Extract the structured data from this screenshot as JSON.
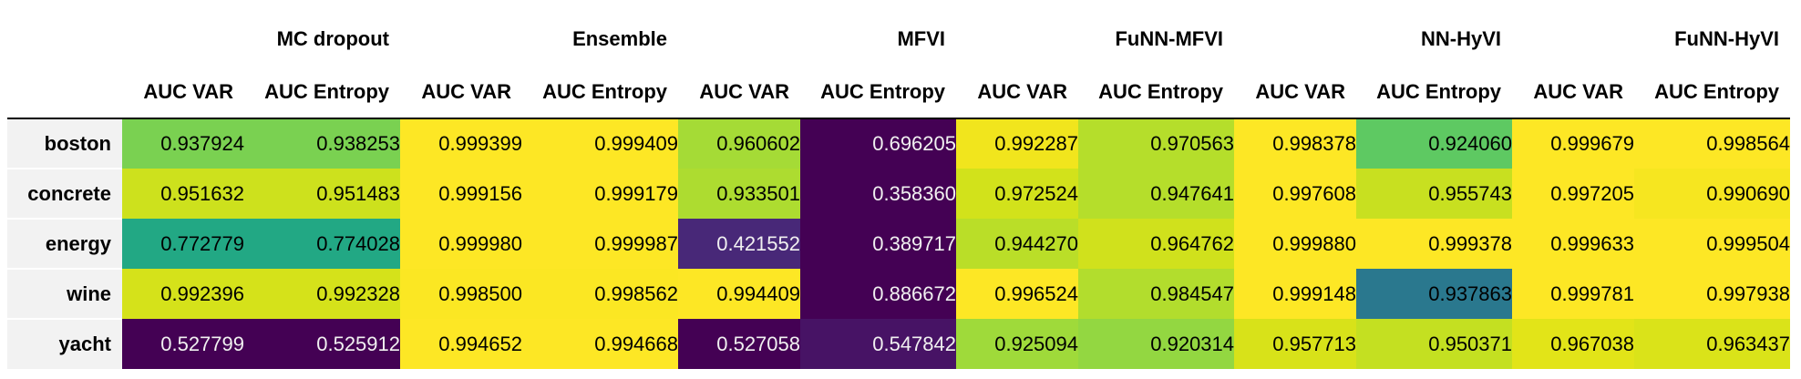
{
  "table": {
    "groups": [
      "MC dropout",
      "Ensemble",
      "MFVI",
      "FuNN-MFVI",
      "NN-HyVI",
      "FuNN-HyVI"
    ],
    "subcolumns": [
      "AUC VAR",
      "AUC Entropy"
    ],
    "rows": [
      {
        "name": "boston",
        "cells": [
          {
            "text": "0.937924",
            "bg": "#7ad151",
            "fg": "#000000"
          },
          {
            "text": "0.938253",
            "bg": "#7ad151",
            "fg": "#000000"
          },
          {
            "text": "0.999399",
            "bg": "#fde725",
            "fg": "#000000"
          },
          {
            "text": "0.999409",
            "bg": "#fde725",
            "fg": "#000000"
          },
          {
            "text": "0.960602",
            "bg": "#a5db36",
            "fg": "#000000"
          },
          {
            "text": "0.696205",
            "bg": "#440154",
            "fg": "#f1f1f1"
          },
          {
            "text": "0.992287",
            "bg": "#f1e51d",
            "fg": "#000000"
          },
          {
            "text": "0.970563",
            "bg": "#b5de2b",
            "fg": "#000000"
          },
          {
            "text": "0.998378",
            "bg": "#fde725",
            "fg": "#000000"
          },
          {
            "text": "0.924060",
            "bg": "#5ec962",
            "fg": "#000000"
          },
          {
            "text": "0.999679",
            "bg": "#fde725",
            "fg": "#000000"
          },
          {
            "text": "0.998564",
            "bg": "#fde725",
            "fg": "#000000"
          }
        ]
      },
      {
        "name": "concrete",
        "cells": [
          {
            "text": "0.951632",
            "bg": "#cde11d",
            "fg": "#000000"
          },
          {
            "text": "0.951483",
            "bg": "#cde11d",
            "fg": "#000000"
          },
          {
            "text": "0.999156",
            "bg": "#fde725",
            "fg": "#000000"
          },
          {
            "text": "0.999179",
            "bg": "#fde725",
            "fg": "#000000"
          },
          {
            "text": "0.933501",
            "bg": "#addc30",
            "fg": "#000000"
          },
          {
            "text": "0.358360",
            "bg": "#440154",
            "fg": "#f1f1f1"
          },
          {
            "text": "0.972524",
            "bg": "#d2e21b",
            "fg": "#000000"
          },
          {
            "text": "0.947641",
            "bg": "#b5de2b",
            "fg": "#000000"
          },
          {
            "text": "0.997608",
            "bg": "#fde725",
            "fg": "#000000"
          },
          {
            "text": "0.955743",
            "bg": "#c8e020",
            "fg": "#000000"
          },
          {
            "text": "0.997205",
            "bg": "#fde725",
            "fg": "#000000"
          },
          {
            "text": "0.990690",
            "bg": "#f6e620",
            "fg": "#000000"
          }
        ]
      },
      {
        "name": "energy",
        "cells": [
          {
            "text": "0.772779",
            "bg": "#22a884",
            "fg": "#000000"
          },
          {
            "text": "0.774028",
            "bg": "#22a884",
            "fg": "#000000"
          },
          {
            "text": "0.999980",
            "bg": "#fde725",
            "fg": "#000000"
          },
          {
            "text": "0.999987",
            "bg": "#fde725",
            "fg": "#000000"
          },
          {
            "text": "0.421552",
            "bg": "#482878",
            "fg": "#f1f1f1"
          },
          {
            "text": "0.389717",
            "bg": "#440154",
            "fg": "#f1f1f1"
          },
          {
            "text": "0.944270",
            "bg": "#bade28",
            "fg": "#000000"
          },
          {
            "text": "0.964762",
            "bg": "#d0e11c",
            "fg": "#000000"
          },
          {
            "text": "0.999880",
            "bg": "#fde725",
            "fg": "#000000"
          },
          {
            "text": "0.999378",
            "bg": "#fde725",
            "fg": "#000000"
          },
          {
            "text": "0.999633",
            "bg": "#fde725",
            "fg": "#000000"
          },
          {
            "text": "0.999504",
            "bg": "#fde725",
            "fg": "#000000"
          }
        ]
      },
      {
        "name": "wine",
        "cells": [
          {
            "text": "0.992396",
            "bg": "#d5e21a",
            "fg": "#000000"
          },
          {
            "text": "0.992328",
            "bg": "#d5e21a",
            "fg": "#000000"
          },
          {
            "text": "0.998500",
            "bg": "#fbe723",
            "fg": "#000000"
          },
          {
            "text": "0.998562",
            "bg": "#fbe723",
            "fg": "#000000"
          },
          {
            "text": "0.994409",
            "bg": "#fde725",
            "fg": "#000000"
          },
          {
            "text": "0.886672",
            "bg": "#440154",
            "fg": "#f1f1f1"
          },
          {
            "text": "0.996524",
            "bg": "#fde725",
            "fg": "#000000"
          },
          {
            "text": "0.984547",
            "bg": "#b2dd2d",
            "fg": "#000000"
          },
          {
            "text": "0.999148",
            "bg": "#fde725",
            "fg": "#000000"
          },
          {
            "text": "0.937863",
            "bg": "#2a788e",
            "fg": "#000000"
          },
          {
            "text": "0.999781",
            "bg": "#fde725",
            "fg": "#000000"
          },
          {
            "text": "0.997938",
            "bg": "#fde725",
            "fg": "#000000"
          }
        ]
      },
      {
        "name": "yacht",
        "cells": [
          {
            "text": "0.527799",
            "bg": "#440154",
            "fg": "#f1f1f1"
          },
          {
            "text": "0.525912",
            "bg": "#440154",
            "fg": "#f1f1f1"
          },
          {
            "text": "0.994652",
            "bg": "#fde725",
            "fg": "#000000"
          },
          {
            "text": "0.994668",
            "bg": "#fde725",
            "fg": "#000000"
          },
          {
            "text": "0.527058",
            "bg": "#440154",
            "fg": "#f1f1f1"
          },
          {
            "text": "0.547842",
            "bg": "#471365",
            "fg": "#f1f1f1"
          },
          {
            "text": "0.925094",
            "bg": "#9fda3a",
            "fg": "#000000"
          },
          {
            "text": "0.920314",
            "bg": "#93d741",
            "fg": "#000000"
          },
          {
            "text": "0.957713",
            "bg": "#d8e219",
            "fg": "#000000"
          },
          {
            "text": "0.950371",
            "bg": "#c4e021",
            "fg": "#000000"
          },
          {
            "text": "0.967038",
            "bg": "#e2e418",
            "fg": "#000000"
          },
          {
            "text": "0.963437",
            "bg": "#dae319",
            "fg": "#000000"
          }
        ]
      }
    ]
  }
}
